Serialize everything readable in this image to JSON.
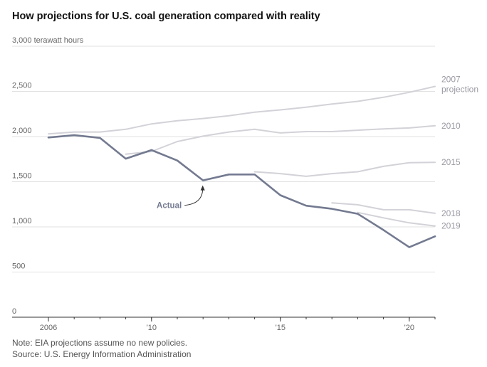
{
  "chart_data": {
    "type": "line",
    "title": "How projections for U.S. coal generation compared with reality",
    "ylabel": "3,000 terawatt hours",
    "ylim": [
      0,
      3000
    ],
    "xlim": [
      2006,
      2021
    ],
    "yticks": [
      {
        "value": 0,
        "label": "0"
      },
      {
        "value": 500,
        "label": "500"
      },
      {
        "value": 1000,
        "label": "1,000"
      },
      {
        "value": 1500,
        "label": "1,500"
      },
      {
        "value": 2000,
        "label": "2,000"
      },
      {
        "value": 2500,
        "label": "2,500"
      },
      {
        "value": 3000,
        "label": "3,000 terawatt hours"
      }
    ],
    "xticks": [
      {
        "value": 2006,
        "label": "2006"
      },
      {
        "value": 2010,
        "label": "'10"
      },
      {
        "value": 2015,
        "label": "'15"
      },
      {
        "value": 2020,
        "label": "'20"
      }
    ],
    "series": [
      {
        "name": "2007 projection",
        "label_lines": [
          "2007",
          "projection"
        ],
        "color": "#d2d2d8",
        "x": [
          2006,
          2007,
          2008,
          2009,
          2010,
          2011,
          2012,
          2013,
          2014,
          2015,
          2016,
          2017,
          2018,
          2019,
          2020,
          2021
        ],
        "values": [
          2030,
          2050,
          2050,
          2080,
          2140,
          2175,
          2200,
          2230,
          2270,
          2295,
          2325,
          2360,
          2390,
          2435,
          2490,
          2555
        ]
      },
      {
        "name": "2010 projection",
        "label_lines": [
          "2010"
        ],
        "color": "#d2d2d8",
        "x": [
          2009,
          2010,
          2011,
          2012,
          2013,
          2014,
          2015,
          2016,
          2017,
          2018,
          2019,
          2020,
          2021
        ],
        "values": [
          1805,
          1835,
          1945,
          2005,
          2050,
          2080,
          2040,
          2055,
          2055,
          2070,
          2085,
          2095,
          2120
        ]
      },
      {
        "name": "2015 projection",
        "label_lines": [
          "2015"
        ],
        "color": "#d2d2d8",
        "x": [
          2014,
          2015,
          2016,
          2017,
          2018,
          2019,
          2020,
          2021
        ],
        "values": [
          1610,
          1590,
          1560,
          1590,
          1610,
          1670,
          1710,
          1715
        ]
      },
      {
        "name": "2018 projection",
        "label_lines": [
          "2018"
        ],
        "color": "#d2d2d8",
        "x": [
          2017,
          2018,
          2019,
          2020,
          2021
        ],
        "values": [
          1265,
          1245,
          1190,
          1190,
          1150
        ]
      },
      {
        "name": "2019 projection",
        "label_lines": [
          "2019"
        ],
        "color": "#d2d2d8",
        "x": [
          2018,
          2019,
          2020,
          2021
        ],
        "values": [
          1160,
          1100,
          1045,
          1010
        ]
      },
      {
        "name": "Actual",
        "label_lines": [
          "Actual"
        ],
        "color": "#737a90",
        "bold": true,
        "x": [
          2006,
          2007,
          2008,
          2009,
          2010,
          2011,
          2012,
          2013,
          2014,
          2015,
          2016,
          2017,
          2018,
          2019,
          2020,
          2021
        ],
        "values": [
          1990,
          2015,
          1985,
          1755,
          1850,
          1735,
          1515,
          1580,
          1580,
          1350,
          1235,
          1200,
          1145,
          965,
          775,
          895
        ]
      }
    ],
    "annotation": {
      "text": "Actual",
      "points_to": {
        "x": 2012,
        "y": 1515
      }
    },
    "note": "Note: EIA projections assume no new policies.",
    "source": "Source: U.S. Energy Information Administration"
  }
}
